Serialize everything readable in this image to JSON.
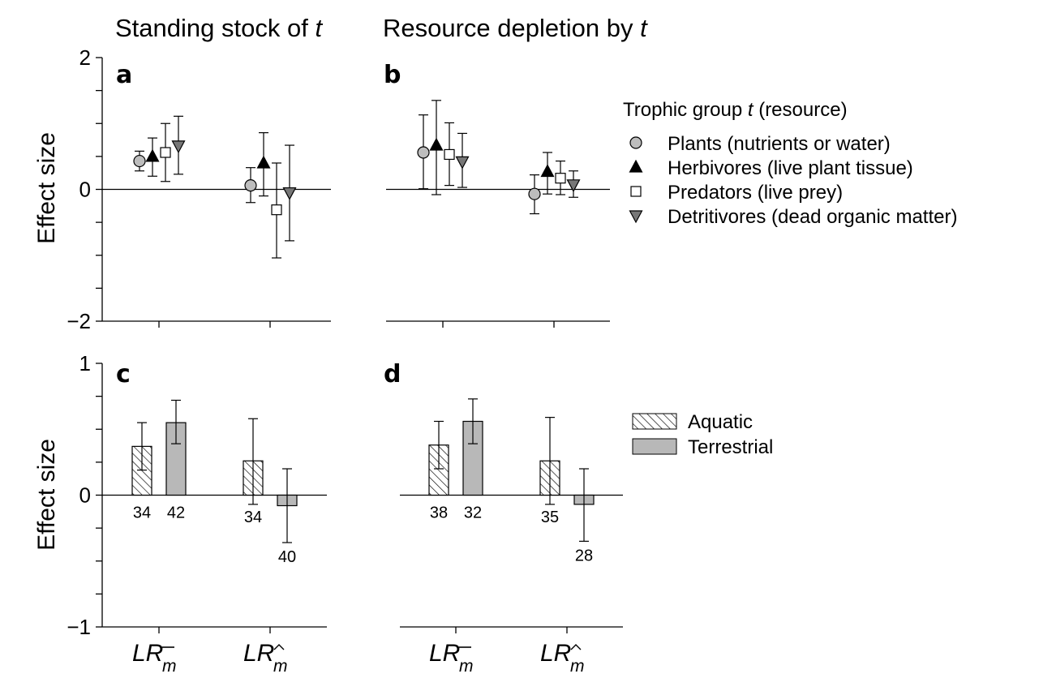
{
  "column_titles": {
    "left": {
      "text": "Standing stock of ",
      "italic": "t"
    },
    "right": {
      "text": "Resource depletion by ",
      "italic": "t"
    }
  },
  "y_axis_label": "Effect size",
  "categories": [
    {
      "main": "LR",
      "sub": "m",
      "accent": "¯"
    },
    {
      "main": "LR",
      "sub": "m",
      "accent": "^"
    }
  ],
  "legend_top": {
    "title": "Trophic group ",
    "title_italic": "t",
    "title_suffix": " (resource)",
    "items": [
      {
        "marker": "circle",
        "fill": "#bdbdbd",
        "label": "Plants (nutrients or water)"
      },
      {
        "marker": "triangle-up",
        "fill": "#000000",
        "label": "Herbivores (live plant tissue)"
      },
      {
        "marker": "square",
        "fill": "#ffffff",
        "label": "Predators (live prey)"
      },
      {
        "marker": "triangle-down",
        "fill": "#777777",
        "label": "Detritivores (dead organic matter)"
      }
    ]
  },
  "legend_bottom": {
    "items": [
      {
        "pattern": "hatch",
        "label": "Aquatic"
      },
      {
        "pattern": "gray",
        "label": "Terrestrial"
      }
    ]
  },
  "colors": {
    "circle": "#bdbdbd",
    "triangle_up": "#000000",
    "square": "#ffffff",
    "triangle_down": "#777777",
    "terrestrial": "#b8b8b8"
  },
  "chart_data": [
    {
      "panel": "a",
      "type": "scatter",
      "ylim": [
        -2,
        2
      ],
      "yticks": [
        "2",
        "0",
        "−2"
      ],
      "ylabel": "Effect size",
      "groups": [
        {
          "category": 0,
          "points": [
            {
              "marker": "circle",
              "y": 0.43,
              "lo": 0.28,
              "hi": 0.58
            },
            {
              "marker": "triangle-up",
              "y": 0.5,
              "lo": 0.2,
              "hi": 0.78
            },
            {
              "marker": "square",
              "y": 0.56,
              "lo": 0.12,
              "hi": 1.0
            },
            {
              "marker": "triangle-down",
              "y": 0.66,
              "lo": 0.23,
              "hi": 1.11
            }
          ]
        },
        {
          "category": 1,
          "points": [
            {
              "marker": "circle",
              "y": 0.06,
              "lo": -0.2,
              "hi": 0.33
            },
            {
              "marker": "triangle-up",
              "y": 0.4,
              "lo": -0.1,
              "hi": 0.86
            },
            {
              "marker": "square",
              "y": -0.31,
              "lo": -1.04,
              "hi": 0.4
            },
            {
              "marker": "triangle-down",
              "y": -0.05,
              "lo": -0.78,
              "hi": 0.67
            }
          ]
        }
      ]
    },
    {
      "panel": "b",
      "type": "scatter",
      "ylim": [
        -2,
        2
      ],
      "groups": [
        {
          "category": 0,
          "points": [
            {
              "marker": "circle",
              "y": 0.56,
              "lo": 0.01,
              "hi": 1.13
            },
            {
              "marker": "triangle-up",
              "y": 0.67,
              "lo": -0.08,
              "hi": 1.35
            },
            {
              "marker": "square",
              "y": 0.53,
              "lo": 0.06,
              "hi": 1.01
            },
            {
              "marker": "triangle-down",
              "y": 0.42,
              "lo": 0.03,
              "hi": 0.85
            }
          ]
        },
        {
          "category": 1,
          "points": [
            {
              "marker": "circle",
              "y": -0.07,
              "lo": -0.37,
              "hi": 0.22
            },
            {
              "marker": "triangle-up",
              "y": 0.27,
              "lo": -0.07,
              "hi": 0.56
            },
            {
              "marker": "square",
              "y": 0.17,
              "lo": -0.08,
              "hi": 0.43
            },
            {
              "marker": "triangle-down",
              "y": 0.07,
              "lo": -0.12,
              "hi": 0.28
            }
          ]
        }
      ]
    },
    {
      "panel": "c",
      "type": "bar",
      "ylim": [
        -1,
        1
      ],
      "yticks": [
        "1",
        "0",
        "−1"
      ],
      "ylabel": "Effect size",
      "groups": [
        {
          "category": 0,
          "bars": [
            {
              "series": "Aquatic",
              "value": 0.37,
              "lo": 0.19,
              "hi": 0.55,
              "n": "34"
            },
            {
              "series": "Terrestrial",
              "value": 0.55,
              "lo": 0.39,
              "hi": 0.72,
              "n": "42"
            }
          ]
        },
        {
          "category": 1,
          "bars": [
            {
              "series": "Aquatic",
              "value": 0.26,
              "lo": -0.07,
              "hi": 0.58,
              "n": "34"
            },
            {
              "series": "Terrestrial",
              "value": -0.08,
              "lo": -0.36,
              "hi": 0.2,
              "n": "40"
            }
          ]
        }
      ]
    },
    {
      "panel": "d",
      "type": "bar",
      "ylim": [
        -1,
        1
      ],
      "groups": [
        {
          "category": 0,
          "bars": [
            {
              "series": "Aquatic",
              "value": 0.38,
              "lo": 0.2,
              "hi": 0.56,
              "n": "38"
            },
            {
              "series": "Terrestrial",
              "value": 0.56,
              "lo": 0.39,
              "hi": 0.73,
              "n": "32"
            }
          ]
        },
        {
          "category": 1,
          "bars": [
            {
              "series": "Aquatic",
              "value": 0.26,
              "lo": -0.07,
              "hi": 0.59,
              "n": "35"
            },
            {
              "series": "Terrestrial",
              "value": -0.07,
              "lo": -0.35,
              "hi": 0.2,
              "n": "28"
            }
          ]
        }
      ]
    }
  ]
}
